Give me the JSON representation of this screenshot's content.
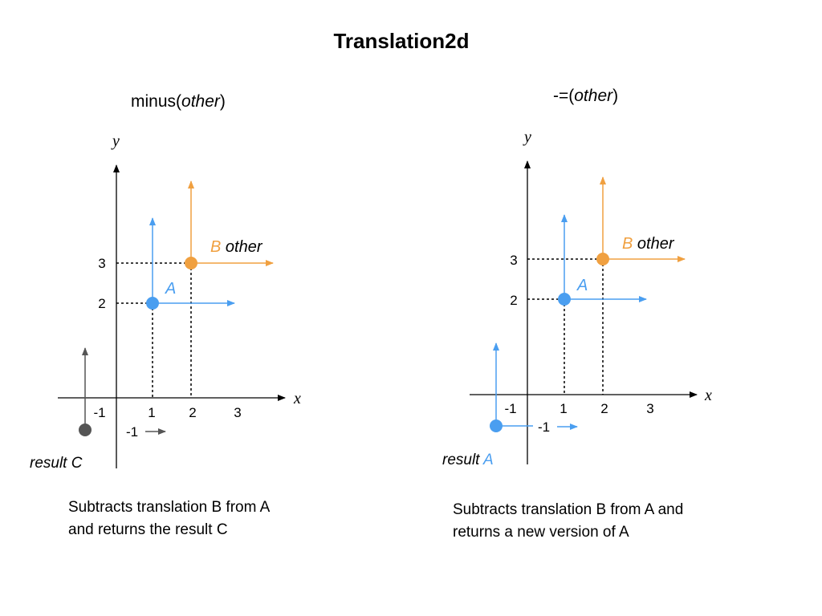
{
  "title": "Translation2d",
  "colors": {
    "blue": "#4a9ef0",
    "orange": "#f0a040",
    "gray": "#555555",
    "axis": "#000000"
  },
  "left": {
    "heading": {
      "prefix": "minus(",
      "arg": "other",
      "suffix": ")"
    },
    "axis": {
      "x": "x",
      "y": "y"
    },
    "ticks": {
      "x": [
        "-1",
        "1",
        "2",
        "3"
      ],
      "y": [
        "2",
        "3"
      ]
    },
    "point_a": "A",
    "point_b": {
      "name": "B",
      "role": "other"
    },
    "result": {
      "prefix": "result ",
      "name": "C"
    },
    "result_offset_label": "-1",
    "caption": [
      "Subtracts translation B from A",
      "and returns the result C"
    ]
  },
  "right": {
    "heading": {
      "prefix": "-=(",
      "arg": "other",
      "suffix": ")"
    },
    "axis": {
      "x": "x",
      "y": "y"
    },
    "ticks": {
      "x": [
        "-1",
        "1",
        "2",
        "3"
      ],
      "y": [
        "2",
        "3"
      ]
    },
    "point_a": "A",
    "point_b": {
      "name": "B",
      "role": "other"
    },
    "result": {
      "prefix": "result ",
      "name": "A"
    },
    "result_offset_label": "-1",
    "caption": [
      "Subtracts translation B from A and",
      "returns a new version of A"
    ]
  }
}
